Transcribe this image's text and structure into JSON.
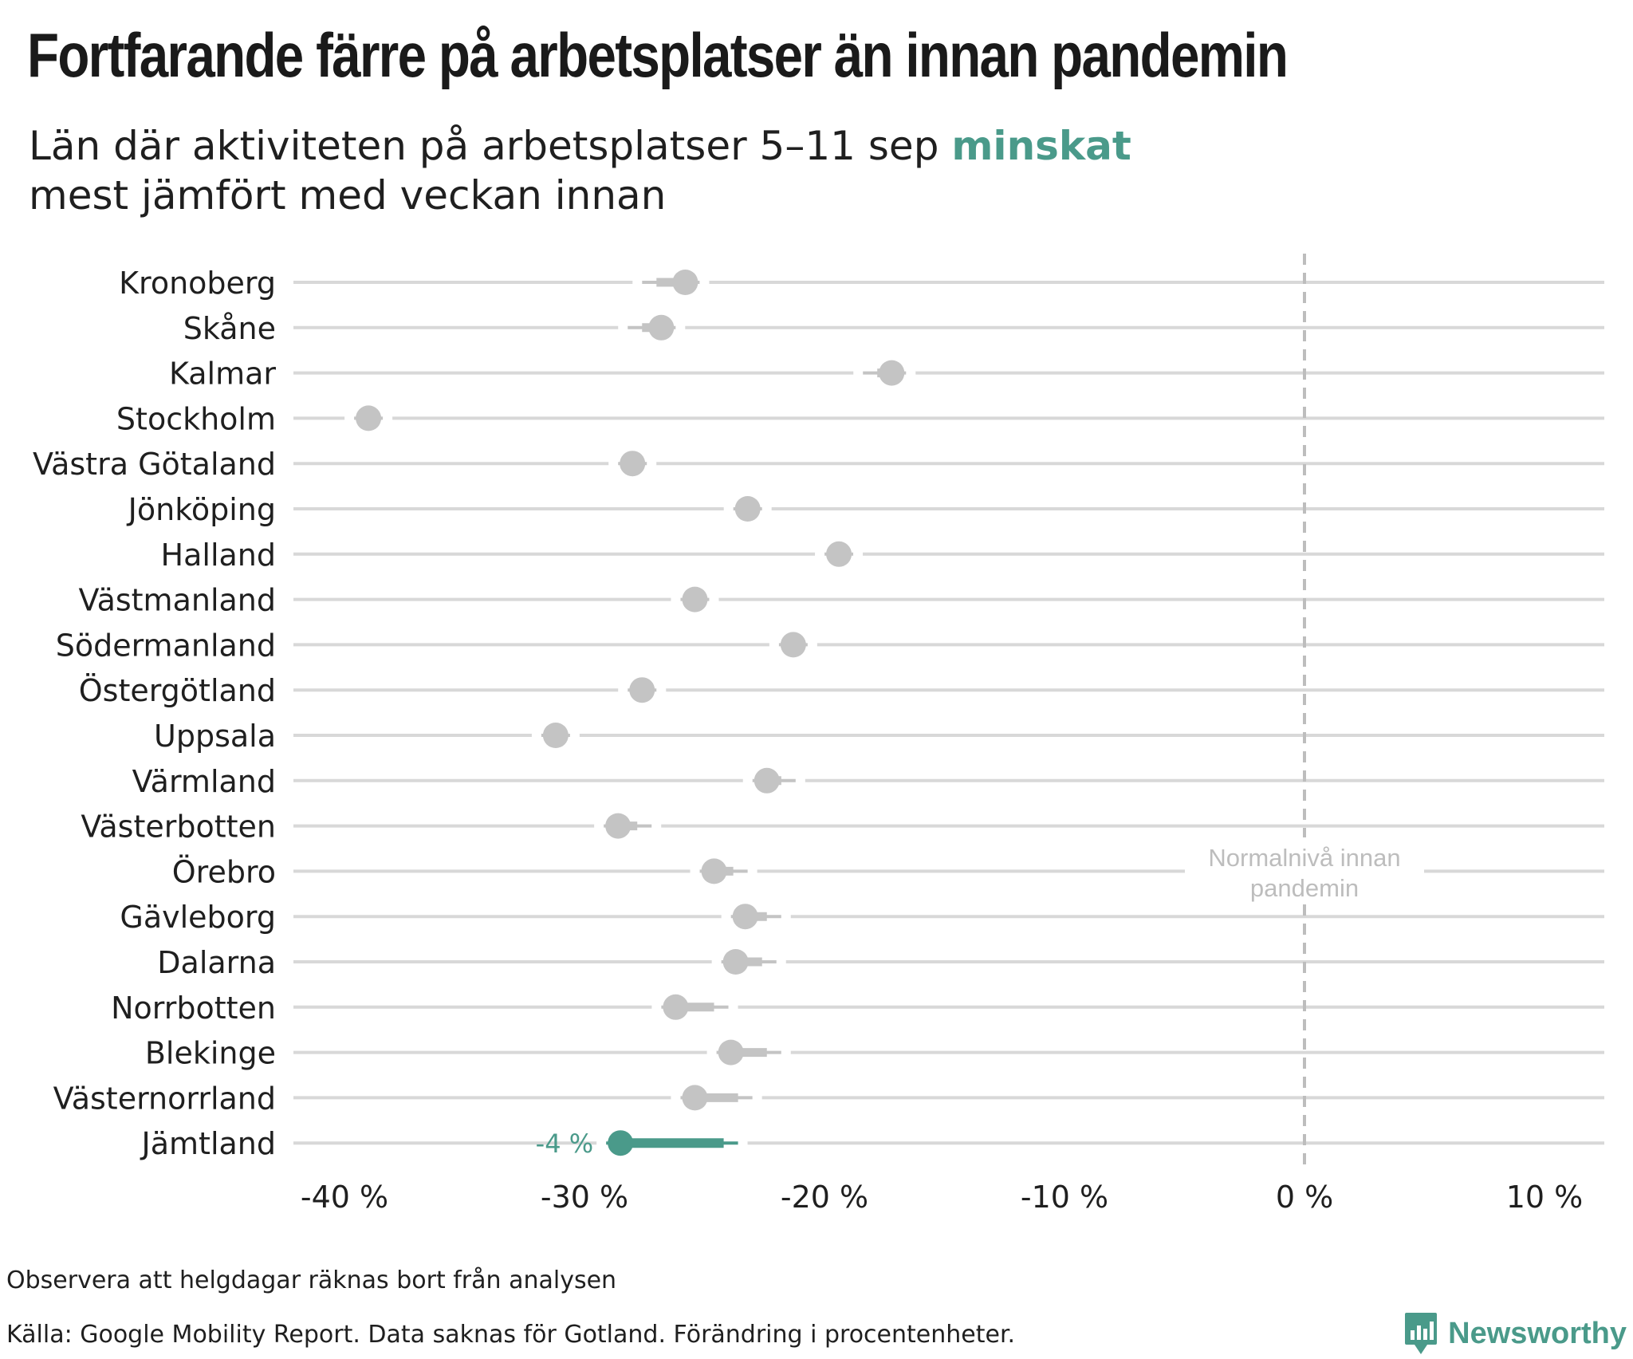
{
  "title": "Fortfarande färre på arbetsplatser än innan pandemin",
  "subtitle": {
    "before": "Län där aktiviteten på arbetsplatser 5–11 sep ",
    "highlight": "minskat",
    "after": "mest jämfört med veckan innan"
  },
  "footer": {
    "note": "Observera att helgdagar räknas bort från analysen",
    "source": "Källa: Google Mobility Report. Data saknas för Gotland. Förändring i procentenheter."
  },
  "brand": {
    "name": "Newsworthy"
  },
  "colors": {
    "highlight": "#4a9a8a",
    "point": "#c4c4c4",
    "grid": "#d8d8d8",
    "reference": "#bdbdbd"
  },
  "chart_data": {
    "type": "scatter",
    "subtype": "dumbbell",
    "xlim": [
      -42,
      12.5
    ],
    "ticks": [
      -40,
      -30,
      -20,
      -10,
      0,
      10
    ],
    "tick_labels": [
      "-40 %",
      "-30 %",
      "-20 %",
      "-10 %",
      "0 %",
      "10 %"
    ],
    "reference": {
      "x": 0,
      "label_line1": "Normalnivå innan",
      "label_line2": "pandemin"
    },
    "highlight_label": "-4 %",
    "series": [
      {
        "name": "Kronoberg",
        "previous": -27.0,
        "current": -25.8
      },
      {
        "name": "Skåne",
        "previous": -27.6,
        "current": -26.8
      },
      {
        "name": "Kalmar",
        "previous": -17.8,
        "current": -17.2
      },
      {
        "name": "Stockholm",
        "previous": -39.0,
        "current": -39.0
      },
      {
        "name": "Västra Götaland",
        "previous": -28.0,
        "current": -28.0
      },
      {
        "name": "Jönköping",
        "previous": -23.2,
        "current": -23.2
      },
      {
        "name": "Halland",
        "previous": -19.4,
        "current": -19.4
      },
      {
        "name": "Västmanland",
        "previous": -25.4,
        "current": -25.4
      },
      {
        "name": "Södermanland",
        "previous": -21.3,
        "current": -21.3
      },
      {
        "name": "Östergötland",
        "previous": -27.6,
        "current": -27.6
      },
      {
        "name": "Uppsala",
        "previous": -31.2,
        "current": -31.2
      },
      {
        "name": "Värmland",
        "previous": -21.8,
        "current": -22.4
      },
      {
        "name": "Västerbotten",
        "previous": -27.8,
        "current": -28.6
      },
      {
        "name": "Örebro",
        "previous": -23.8,
        "current": -24.6
      },
      {
        "name": "Gävleborg",
        "previous": -22.4,
        "current": -23.3
      },
      {
        "name": "Dalarna",
        "previous": -22.6,
        "current": -23.7
      },
      {
        "name": "Norrbotten",
        "previous": -24.6,
        "current": -26.2
      },
      {
        "name": "Blekinge",
        "previous": -22.4,
        "current": -23.9
      },
      {
        "name": "Västernorrland",
        "previous": -23.6,
        "current": -25.4
      },
      {
        "name": "Jämtland",
        "previous": -24.2,
        "current": -28.5,
        "highlight": true
      }
    ]
  }
}
